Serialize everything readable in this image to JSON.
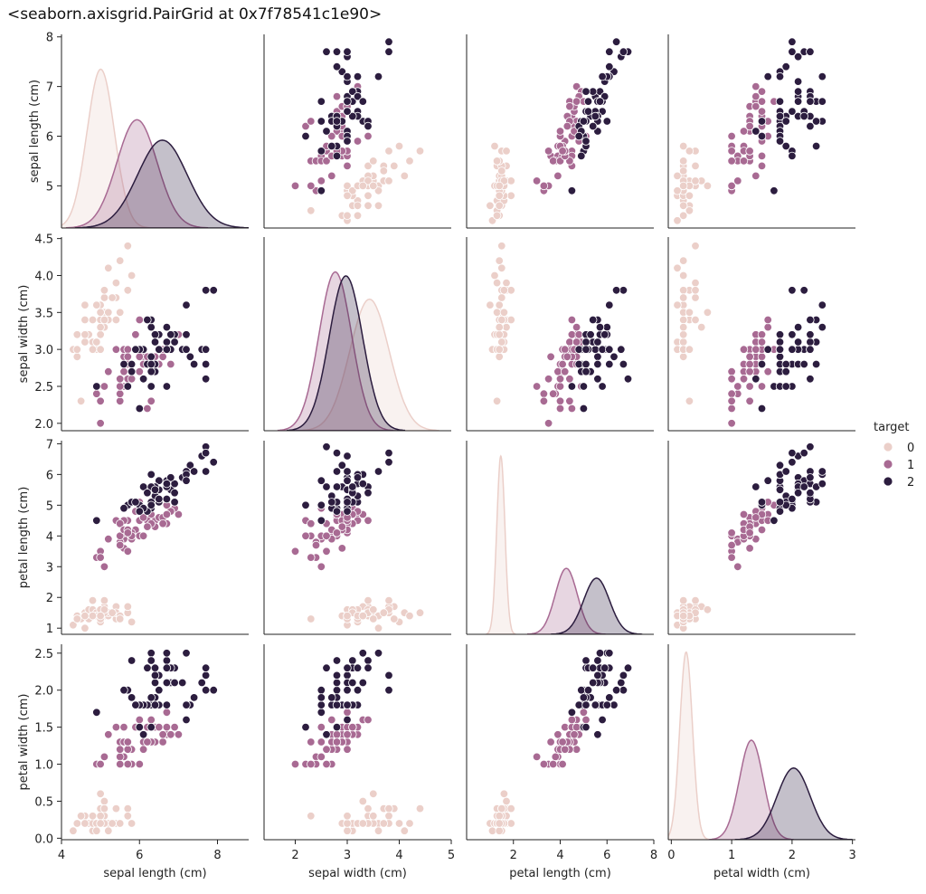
{
  "repr_text": "<seaborn.axisgrid.PairGrid at 0x7f78541c1e90>",
  "chart_data": {
    "type": "scatter",
    "kind": "pairplot",
    "variables": [
      "sepal length (cm)",
      "sepal width (cm)",
      "petal length (cm)",
      "petal width (cm)"
    ],
    "hue": "target",
    "legend": {
      "title": "target",
      "position": "right",
      "entries": [
        {
          "label": "0",
          "color": "#ebcfc9"
        },
        {
          "label": "1",
          "color": "#a86a93"
        },
        {
          "label": "2",
          "color": "#2c1d3f"
        }
      ]
    },
    "axes": [
      {
        "name": "sepal length (cm)",
        "lim": [
          4,
          8.8
        ],
        "ticks": [
          4,
          6,
          8
        ],
        "yticks": [
          5,
          6,
          7,
          8
        ],
        "ylim": [
          4.15,
          8.05
        ]
      },
      {
        "name": "sepal width (cm)",
        "lim": [
          1.4,
          5.0
        ],
        "ticks": [
          2,
          3,
          4,
          5
        ],
        "yticks": [
          "2.0",
          "2.5",
          "3.0",
          "3.5",
          "4.0",
          "4.5"
        ],
        "ylim": [
          1.9,
          4.52
        ]
      },
      {
        "name": "petal length (cm)",
        "lim": [
          0,
          8
        ],
        "ticks": [
          2,
          4,
          6,
          8
        ],
        "yticks": [
          1,
          2,
          3,
          4,
          5,
          6,
          7
        ],
        "ylim": [
          0.8,
          7.1
        ]
      },
      {
        "name": "petal width (cm)",
        "lim": [
          -0.05,
          3.05
        ],
        "ticks": [
          0,
          1,
          2,
          3
        ],
        "yticks": [
          "0.0",
          "0.5",
          "1.0",
          "1.5",
          "2.0",
          "2.5"
        ],
        "ylim": [
          -0.02,
          2.62
        ]
      }
    ],
    "series": [
      {
        "name": "0",
        "points": [
          [
            5.1,
            3.5,
            1.4,
            0.2
          ],
          [
            4.9,
            3.0,
            1.4,
            0.2
          ],
          [
            4.7,
            3.2,
            1.3,
            0.2
          ],
          [
            4.6,
            3.1,
            1.5,
            0.2
          ],
          [
            5.0,
            3.6,
            1.4,
            0.2
          ],
          [
            5.4,
            3.9,
            1.7,
            0.4
          ],
          [
            4.6,
            3.4,
            1.4,
            0.3
          ],
          [
            5.0,
            3.4,
            1.5,
            0.2
          ],
          [
            4.4,
            2.9,
            1.4,
            0.2
          ],
          [
            4.9,
            3.1,
            1.5,
            0.1
          ],
          [
            5.4,
            3.7,
            1.5,
            0.2
          ],
          [
            4.8,
            3.4,
            1.6,
            0.2
          ],
          [
            4.8,
            3.0,
            1.4,
            0.1
          ],
          [
            4.3,
            3.0,
            1.1,
            0.1
          ],
          [
            5.8,
            4.0,
            1.2,
            0.2
          ],
          [
            5.7,
            4.4,
            1.5,
            0.4
          ],
          [
            5.4,
            3.9,
            1.3,
            0.4
          ],
          [
            5.1,
            3.5,
            1.4,
            0.3
          ],
          [
            5.7,
            3.8,
            1.7,
            0.3
          ],
          [
            5.1,
            3.8,
            1.5,
            0.3
          ],
          [
            5.4,
            3.4,
            1.7,
            0.2
          ],
          [
            5.1,
            3.7,
            1.5,
            0.4
          ],
          [
            4.6,
            3.6,
            1.0,
            0.2
          ],
          [
            5.1,
            3.3,
            1.7,
            0.5
          ],
          [
            4.8,
            3.4,
            1.9,
            0.2
          ],
          [
            5.0,
            3.0,
            1.6,
            0.2
          ],
          [
            5.0,
            3.4,
            1.6,
            0.4
          ],
          [
            5.2,
            3.5,
            1.5,
            0.2
          ],
          [
            5.2,
            3.4,
            1.4,
            0.2
          ],
          [
            4.7,
            3.2,
            1.6,
            0.2
          ],
          [
            4.8,
            3.1,
            1.6,
            0.2
          ],
          [
            5.4,
            3.4,
            1.5,
            0.4
          ],
          [
            5.2,
            4.1,
            1.5,
            0.1
          ],
          [
            5.5,
            4.2,
            1.4,
            0.2
          ],
          [
            4.9,
            3.1,
            1.5,
            0.2
          ],
          [
            5.0,
            3.2,
            1.2,
            0.2
          ],
          [
            5.5,
            3.5,
            1.3,
            0.2
          ],
          [
            4.9,
            3.6,
            1.4,
            0.1
          ],
          [
            4.4,
            3.0,
            1.3,
            0.2
          ],
          [
            5.1,
            3.4,
            1.5,
            0.2
          ],
          [
            5.0,
            3.5,
            1.3,
            0.3
          ],
          [
            4.5,
            2.3,
            1.3,
            0.3
          ],
          [
            4.4,
            3.2,
            1.3,
            0.2
          ],
          [
            5.0,
            3.5,
            1.6,
            0.6
          ],
          [
            5.1,
            3.8,
            1.9,
            0.4
          ],
          [
            4.8,
            3.0,
            1.4,
            0.3
          ],
          [
            5.1,
            3.8,
            1.6,
            0.2
          ],
          [
            4.6,
            3.2,
            1.4,
            0.2
          ],
          [
            5.3,
            3.7,
            1.5,
            0.2
          ],
          [
            5.0,
            3.3,
            1.4,
            0.2
          ]
        ],
        "kde": [
          {
            "mean": 5.006,
            "sd": 0.352
          },
          {
            "mean": 3.428,
            "sd": 0.379
          },
          {
            "mean": 1.462,
            "sd": 0.174
          },
          {
            "mean": 0.246,
            "sd": 0.105
          }
        ]
      },
      {
        "name": "1",
        "points": [
          [
            7.0,
            3.2,
            4.7,
            1.4
          ],
          [
            6.4,
            3.2,
            4.5,
            1.5
          ],
          [
            6.9,
            3.1,
            4.9,
            1.5
          ],
          [
            5.5,
            2.3,
            4.0,
            1.3
          ],
          [
            6.5,
            2.8,
            4.6,
            1.5
          ],
          [
            5.7,
            2.8,
            4.5,
            1.3
          ],
          [
            6.3,
            3.3,
            4.7,
            1.6
          ],
          [
            4.9,
            2.4,
            3.3,
            1.0
          ],
          [
            6.6,
            2.9,
            4.6,
            1.3
          ],
          [
            5.2,
            2.7,
            3.9,
            1.4
          ],
          [
            5.0,
            2.0,
            3.5,
            1.0
          ],
          [
            5.9,
            3.0,
            4.2,
            1.5
          ],
          [
            6.0,
            2.2,
            4.0,
            1.0
          ],
          [
            6.1,
            2.9,
            4.7,
            1.4
          ],
          [
            5.6,
            2.9,
            3.6,
            1.3
          ],
          [
            6.7,
            3.1,
            4.4,
            1.4
          ],
          [
            5.6,
            3.0,
            4.5,
            1.5
          ],
          [
            5.8,
            2.7,
            4.1,
            1.0
          ],
          [
            6.2,
            2.2,
            4.5,
            1.5
          ],
          [
            5.6,
            2.5,
            3.9,
            1.1
          ],
          [
            5.9,
            3.2,
            4.8,
            1.8
          ],
          [
            6.1,
            2.8,
            4.0,
            1.3
          ],
          [
            6.3,
            2.5,
            4.9,
            1.5
          ],
          [
            6.1,
            2.8,
            4.7,
            1.2
          ],
          [
            6.4,
            2.9,
            4.3,
            1.3
          ],
          [
            6.6,
            3.0,
            4.4,
            1.4
          ],
          [
            6.8,
            2.8,
            4.8,
            1.4
          ],
          [
            6.7,
            3.0,
            5.0,
            1.7
          ],
          [
            6.0,
            2.9,
            4.5,
            1.5
          ],
          [
            5.7,
            2.6,
            3.5,
            1.0
          ],
          [
            5.5,
            2.4,
            3.8,
            1.1
          ],
          [
            5.5,
            2.4,
            3.7,
            1.0
          ],
          [
            5.8,
            2.7,
            3.9,
            1.2
          ],
          [
            6.0,
            2.7,
            5.1,
            1.6
          ],
          [
            5.4,
            3.0,
            4.5,
            1.5
          ],
          [
            6.0,
            3.4,
            4.5,
            1.6
          ],
          [
            6.7,
            3.1,
            4.7,
            1.5
          ],
          [
            6.3,
            2.3,
            4.4,
            1.3
          ],
          [
            5.6,
            3.0,
            4.1,
            1.3
          ],
          [
            5.5,
            2.5,
            4.0,
            1.3
          ],
          [
            5.5,
            2.6,
            4.4,
            1.2
          ],
          [
            6.1,
            3.0,
            4.6,
            1.4
          ],
          [
            5.8,
            2.6,
            4.0,
            1.2
          ],
          [
            5.0,
            2.3,
            3.3,
            1.0
          ],
          [
            5.6,
            2.7,
            4.2,
            1.3
          ],
          [
            5.7,
            3.0,
            4.2,
            1.2
          ],
          [
            5.7,
            2.9,
            4.2,
            1.3
          ],
          [
            6.2,
            2.9,
            4.3,
            1.3
          ],
          [
            5.1,
            2.5,
            3.0,
            1.1
          ],
          [
            5.7,
            2.8,
            4.1,
            1.3
          ]
        ],
        "kde": [
          {
            "mean": 5.936,
            "sd": 0.516
          },
          {
            "mean": 2.77,
            "sd": 0.314
          },
          {
            "mean": 4.26,
            "sd": 0.47
          },
          {
            "mean": 1.326,
            "sd": 0.198
          }
        ]
      },
      {
        "name": "2",
        "points": [
          [
            6.3,
            3.3,
            6.0,
            2.5
          ],
          [
            5.8,
            2.7,
            5.1,
            1.9
          ],
          [
            7.1,
            3.0,
            5.9,
            2.1
          ],
          [
            6.3,
            2.9,
            5.6,
            1.8
          ],
          [
            6.5,
            3.0,
            5.8,
            2.2
          ],
          [
            7.6,
            3.0,
            6.6,
            2.1
          ],
          [
            4.9,
            2.5,
            4.5,
            1.7
          ],
          [
            7.3,
            2.9,
            6.3,
            1.8
          ],
          [
            6.7,
            2.5,
            5.8,
            1.8
          ],
          [
            7.2,
            3.6,
            6.1,
            2.5
          ],
          [
            6.5,
            3.2,
            5.1,
            2.0
          ],
          [
            6.4,
            2.7,
            5.3,
            1.9
          ],
          [
            6.8,
            3.0,
            5.5,
            2.1
          ],
          [
            5.7,
            2.5,
            5.0,
            2.0
          ],
          [
            5.8,
            2.8,
            5.1,
            2.4
          ],
          [
            6.4,
            3.2,
            5.3,
            2.3
          ],
          [
            6.5,
            3.0,
            5.5,
            1.8
          ],
          [
            7.7,
            3.8,
            6.7,
            2.2
          ],
          [
            7.7,
            2.6,
            6.9,
            2.3
          ],
          [
            6.0,
            2.2,
            5.0,
            1.5
          ],
          [
            6.9,
            3.2,
            5.7,
            2.3
          ],
          [
            5.6,
            2.8,
            4.9,
            2.0
          ],
          [
            7.7,
            2.8,
            6.7,
            2.0
          ],
          [
            6.3,
            2.7,
            4.9,
            1.8
          ],
          [
            6.7,
            3.3,
            5.7,
            2.1
          ],
          [
            7.2,
            3.2,
            6.0,
            1.8
          ],
          [
            6.2,
            2.8,
            4.8,
            1.8
          ],
          [
            6.1,
            3.0,
            4.9,
            1.8
          ],
          [
            6.4,
            2.8,
            5.6,
            2.1
          ],
          [
            7.2,
            3.0,
            5.8,
            1.6
          ],
          [
            7.4,
            2.8,
            6.1,
            1.9
          ],
          [
            7.9,
            3.8,
            6.4,
            2.0
          ],
          [
            6.4,
            2.8,
            5.6,
            2.2
          ],
          [
            6.3,
            2.8,
            5.1,
            1.5
          ],
          [
            6.1,
            2.6,
            5.6,
            1.4
          ],
          [
            7.7,
            3.0,
            6.1,
            2.3
          ],
          [
            6.3,
            3.4,
            5.6,
            2.4
          ],
          [
            6.4,
            3.1,
            5.5,
            1.8
          ],
          [
            6.0,
            3.0,
            4.8,
            1.8
          ],
          [
            6.9,
            3.1,
            5.4,
            2.1
          ],
          [
            6.7,
            3.1,
            5.6,
            2.4
          ],
          [
            6.9,
            3.1,
            5.1,
            2.3
          ],
          [
            5.8,
            2.7,
            5.1,
            1.9
          ],
          [
            6.8,
            3.2,
            5.9,
            2.3
          ],
          [
            6.7,
            3.3,
            5.7,
            2.5
          ],
          [
            6.7,
            3.0,
            5.2,
            2.3
          ],
          [
            6.3,
            2.5,
            5.0,
            1.9
          ],
          [
            6.5,
            3.0,
            5.2,
            2.0
          ],
          [
            6.2,
            3.4,
            5.4,
            2.3
          ],
          [
            5.9,
            3.0,
            5.1,
            1.8
          ]
        ],
        "kde": [
          {
            "mean": 6.588,
            "sd": 0.636
          },
          {
            "mean": 2.974,
            "sd": 0.322
          },
          {
            "mean": 5.552,
            "sd": 0.552
          },
          {
            "mean": 2.026,
            "sd": 0.275
          }
        ]
      }
    ]
  }
}
